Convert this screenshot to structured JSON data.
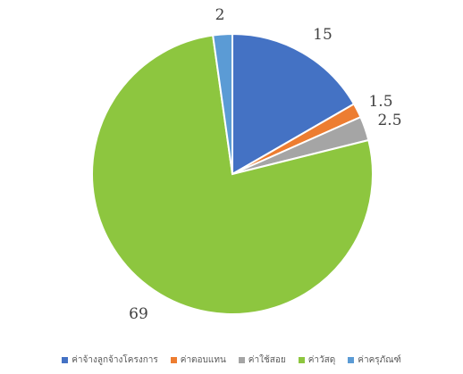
{
  "chart_data": {
    "type": "pie",
    "categories": [
      "ค่าจ้างลูกจ้างโครงการ",
      "ค่าตอบแทน",
      "ค่าใช้สอย",
      "ค่าวัสดุ",
      "ค่าครุภัณฑ์"
    ],
    "values": [
      15,
      1.5,
      2.5,
      69,
      2
    ],
    "value_labels": [
      "15",
      "1.5",
      "2.5",
      "69",
      "2"
    ],
    "colors": [
      "#4472C4",
      "#ED7D31",
      "#A5A5A5",
      "#8DC63F",
      "#5B9BD5"
    ],
    "legend_position": "bottom",
    "start_angle": "12 o'clock",
    "direction": "clockwise"
  }
}
